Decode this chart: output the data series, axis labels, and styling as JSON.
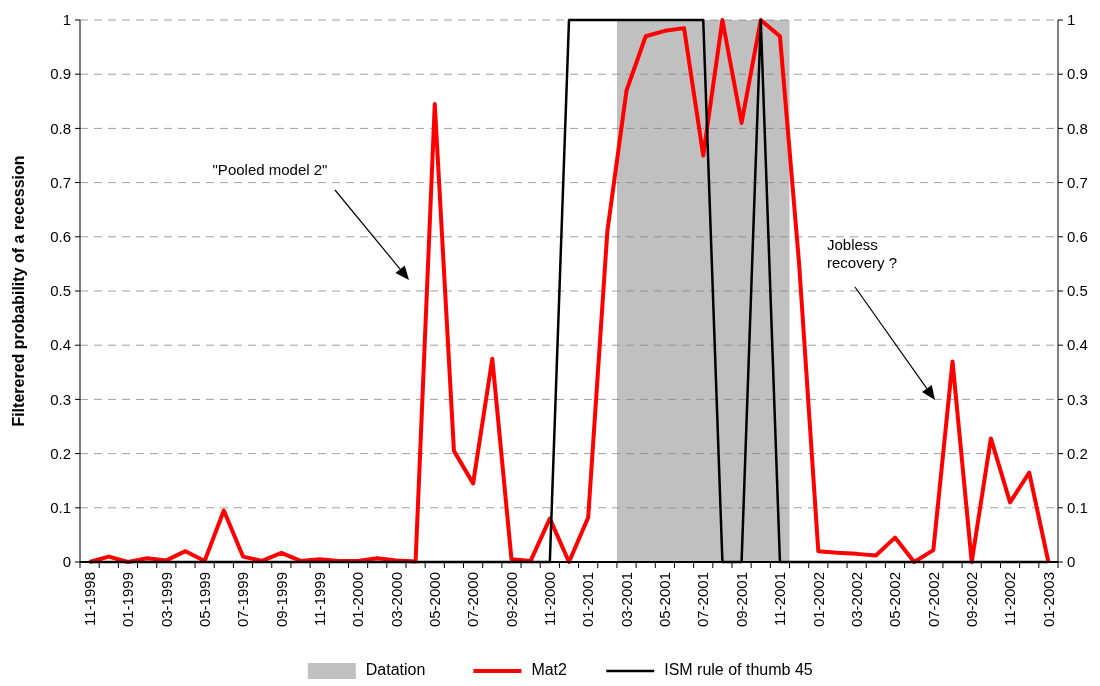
{
  "chart_data": {
    "type": "line",
    "ylabel": "Filterered probability of a recession",
    "categories": [
      "11-1998",
      null,
      "01-1999",
      null,
      "03-1999",
      null,
      "05-1999",
      null,
      "07-1999",
      null,
      "09-1999",
      null,
      "11-1999",
      null,
      "01-2000",
      null,
      "03-2000",
      null,
      "05-2000",
      null,
      "07-2000",
      null,
      "09-2000",
      null,
      "11-2000",
      null,
      "01-2001",
      null,
      "03-2001",
      null,
      "05-2001",
      null,
      "07-2001",
      null,
      "09-2001",
      null,
      "11-2001",
      null,
      "01-2002",
      null,
      "03-2002",
      null,
      "05-2002",
      null,
      "07-2002",
      null,
      "09-2002",
      null,
      "11-2002",
      null,
      "01-2003"
    ],
    "series": [
      {
        "name": "Mat2",
        "color": "#ff0000",
        "values": [
          0,
          0.01,
          0,
          0.007,
          0.003,
          0.02,
          0.002,
          0.095,
          0.01,
          0.002,
          0.017,
          0.002,
          0.005,
          0.002,
          0.002,
          0.007,
          0.003,
          0.001,
          0.845,
          0.205,
          0.145,
          0.375,
          0.005,
          0.002,
          0.08,
          0,
          0.082,
          0.61,
          0.87,
          0.97,
          0.98,
          0.985,
          0.75,
          1,
          0.81,
          1,
          0.97,
          0.55,
          0.02,
          0.017,
          0.015,
          0.012,
          0.045,
          0,
          0.022,
          0.37,
          0,
          0.228,
          0.11,
          0.165,
          0
        ]
      },
      {
        "name": "ISM rule of thumb 45",
        "color": "#000000",
        "values": [
          0,
          0,
          0,
          0,
          0,
          0,
          0,
          0,
          0,
          0,
          0,
          0,
          0,
          0,
          0,
          0,
          0,
          0,
          0,
          0,
          0,
          0,
          0,
          0,
          0,
          1,
          1,
          1,
          1,
          1,
          1,
          1,
          1,
          0,
          0,
          1,
          0,
          0,
          0,
          0,
          0,
          0,
          0,
          0,
          0,
          0,
          0,
          0,
          0,
          0,
          0
        ]
      }
    ],
    "bands": [
      {
        "axis": "x",
        "from": "03-2001",
        "to": "11-2001",
        "label": "Datation",
        "color": "#c0c0c0"
      }
    ],
    "ylim": [
      0,
      1
    ],
    "yticks": [
      0,
      0.1,
      0.2,
      0.3,
      0.4,
      0.5,
      0.6,
      0.7,
      0.8,
      0.9,
      1
    ],
    "y2lim": [
      0,
      1
    ],
    "y2ticks": [
      0,
      0.1,
      0.2,
      0.3,
      0.4,
      0.5,
      0.6,
      0.7,
      0.8,
      0.9,
      1
    ],
    "grid": "y",
    "legend": "bottom",
    "marker": "none",
    "annotations": [
      "\"Pooled model 2\"",
      "Jobless recovery ?"
    ]
  }
}
